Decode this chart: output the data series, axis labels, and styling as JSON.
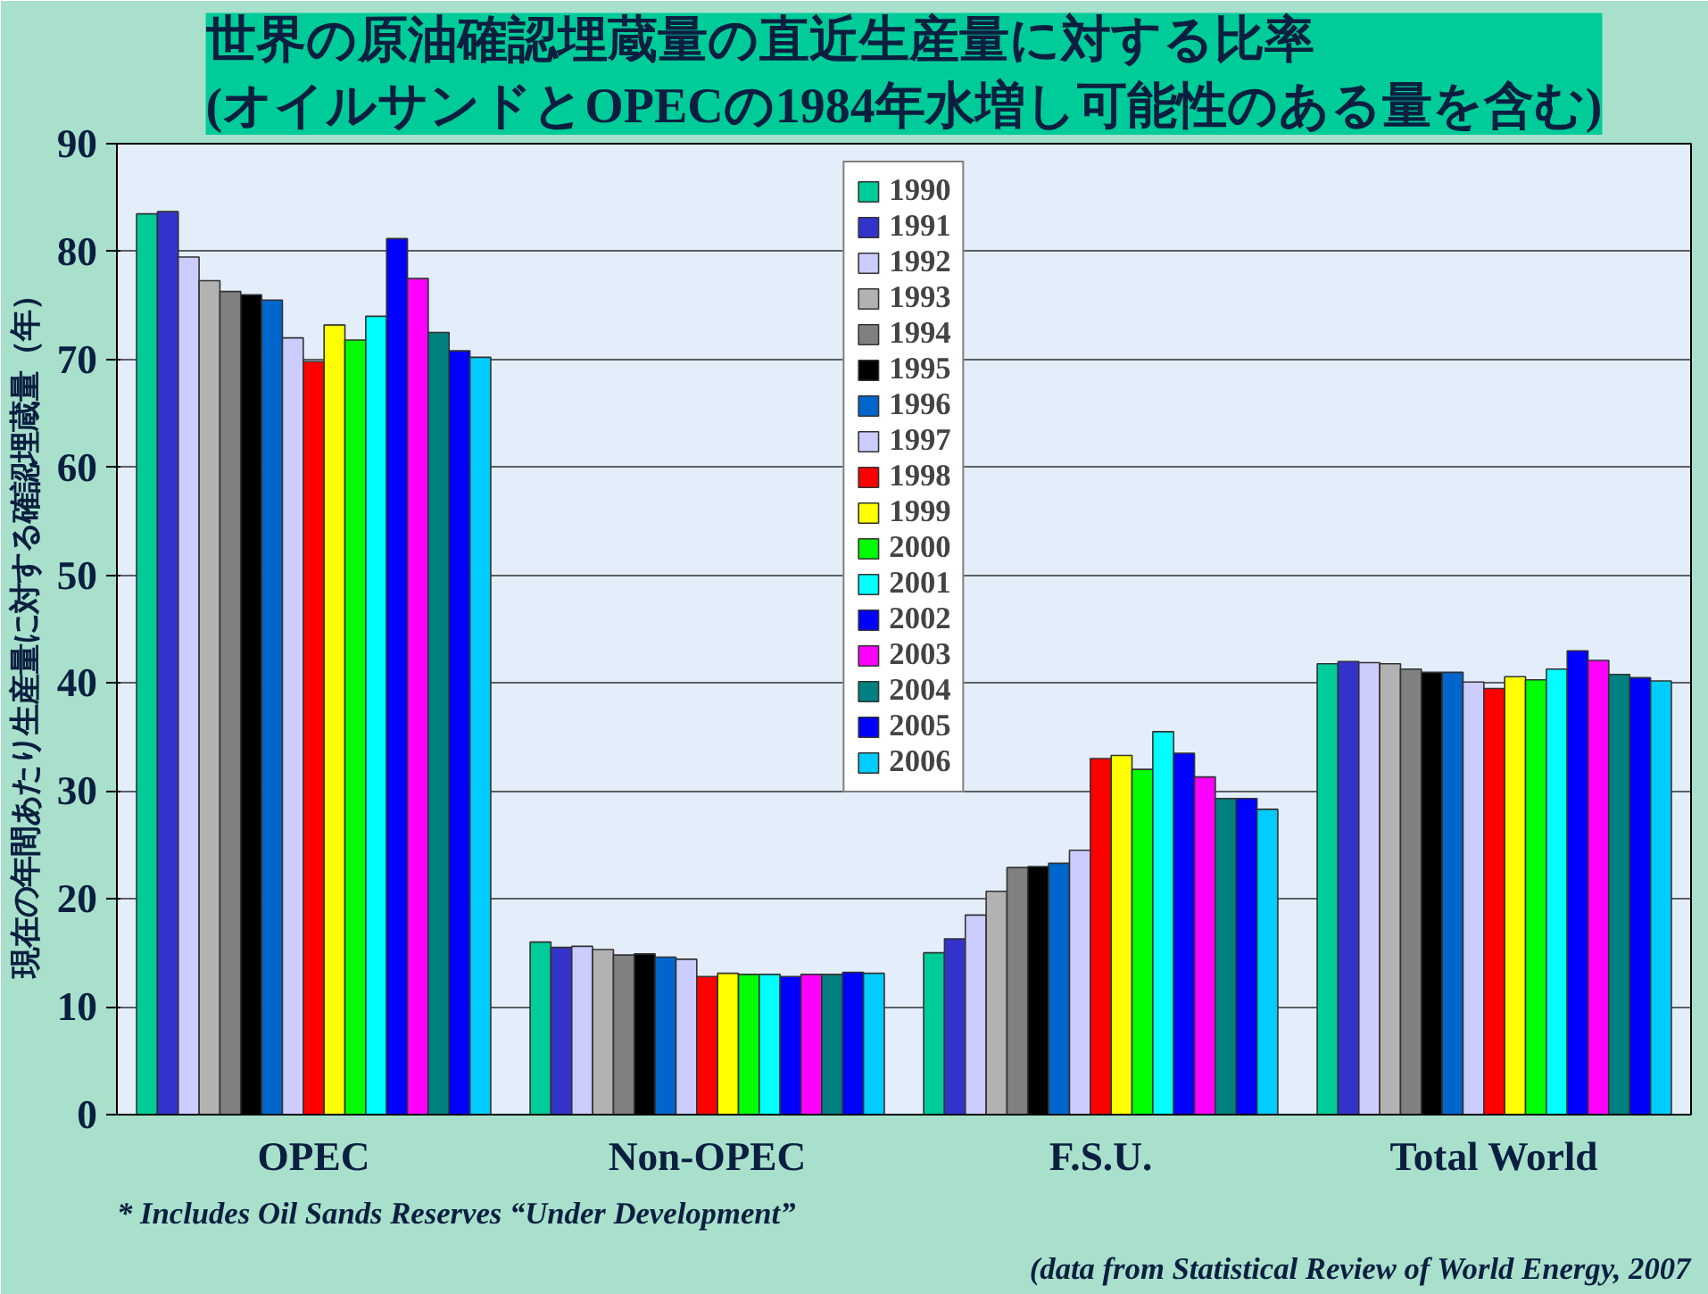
{
  "chart_data": {
    "type": "bar",
    "title": "世界の原油確認埋蔵量の直近生産量に対する比率\n(オイルサンドとOPECの1984年水増し可能性のある量を含む)",
    "ylabel": "現在の年間あたり生産量に対する確認埋蔵量（年）",
    "categories": [
      "OPEC",
      "Non-OPEC",
      "F.S.U.",
      "Total World"
    ],
    "ylim": [
      0,
      90
    ],
    "yticks": [
      0,
      10,
      20,
      30,
      40,
      50,
      60,
      70,
      80,
      90
    ],
    "grid": "y",
    "legend": "top",
    "series": [
      {
        "name": "1990",
        "color": "#00cc99",
        "values": [
          83.5,
          16,
          15,
          41.8
        ]
      },
      {
        "name": "1991",
        "color": "#3333cc",
        "values": [
          83.7,
          15.5,
          16.3,
          42
        ]
      },
      {
        "name": "1992",
        "color": "#ccccff",
        "values": [
          79.5,
          15.6,
          18.5,
          41.9
        ]
      },
      {
        "name": "1993",
        "color": "#b2b2b2",
        "values": [
          77.3,
          15.3,
          20.7,
          41.8
        ]
      },
      {
        "name": "1994",
        "color": "#808080",
        "values": [
          76.3,
          14.8,
          22.9,
          41.3
        ]
      },
      {
        "name": "1995",
        "color": "#000000",
        "values": [
          76,
          14.9,
          23,
          41
        ]
      },
      {
        "name": "1996",
        "color": "#0066cc",
        "values": [
          75.5,
          14.6,
          23.3,
          41
        ]
      },
      {
        "name": "1997",
        "color": "#ccccff",
        "values": [
          72,
          14.4,
          24.5,
          40.1
        ]
      },
      {
        "name": "1998",
        "color": "#ff0000",
        "values": [
          69.8,
          12.8,
          33,
          39.5
        ]
      },
      {
        "name": "1999",
        "color": "#ffff00",
        "values": [
          73.2,
          13.1,
          33.3,
          40.6
        ]
      },
      {
        "name": "2000",
        "color": "#00ff00",
        "values": [
          71.8,
          13,
          32,
          40.3
        ]
      },
      {
        "name": "2001",
        "color": "#00ffff",
        "values": [
          74,
          13,
          35.5,
          41.3
        ]
      },
      {
        "name": "2002",
        "color": "#0000ff",
        "values": [
          81.2,
          12.8,
          33.5,
          43
        ]
      },
      {
        "name": "2003",
        "color": "#ff00ff",
        "values": [
          77.5,
          13,
          31.3,
          42.1
        ]
      },
      {
        "name": "2004",
        "color": "#008080",
        "values": [
          72.5,
          13,
          29.3,
          40.8
        ]
      },
      {
        "name": "2005",
        "color": "#0000ff",
        "values": [
          70.8,
          13.2,
          29.3,
          40.5
        ]
      },
      {
        "name": "2006",
        "color": "#00ccff",
        "values": [
          70.2,
          13.1,
          28.3,
          40.2
        ]
      }
    ],
    "annotations": [
      "* Includes Oil Sands Reserves “Under Development”",
      "(data from Statistical Review of World Energy, 2007"
    ]
  }
}
